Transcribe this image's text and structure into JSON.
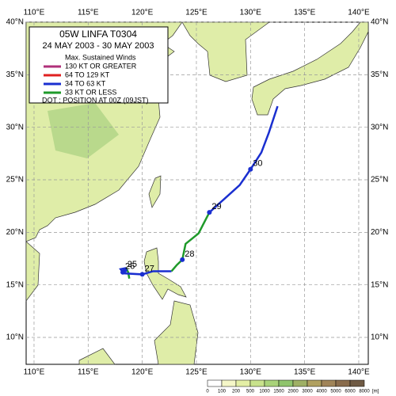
{
  "map": {
    "xlim": [
      109.27,
      140.88
    ],
    "ylim": [
      7.44,
      40
    ],
    "xticks": [
      {
        "value": 110,
        "label": "110°E"
      },
      {
        "value": 115,
        "label": "115°E"
      },
      {
        "value": 120,
        "label": "120°E"
      },
      {
        "value": 125,
        "label": "125°E"
      },
      {
        "value": 130,
        "label": "130°E"
      },
      {
        "value": 135,
        "label": "135°E"
      },
      {
        "value": 140,
        "label": "140°E"
      }
    ],
    "yticks": [
      {
        "value": 10,
        "label": "10°N"
      },
      {
        "value": 15,
        "label": "15°N"
      },
      {
        "value": 20,
        "label": "20°N"
      },
      {
        "value": 25,
        "label": "25°N"
      },
      {
        "value": 30,
        "label": "30°N"
      },
      {
        "value": 35,
        "label": "35°N"
      },
      {
        "value": 40,
        "label": "40°N"
      }
    ],
    "grid": true
  },
  "legend": {
    "title": "05W  LINFA  T0304",
    "period": "24 MAY 2003 - 30 MAY 2003",
    "heading": "Max. Sustained Winds",
    "items": [
      {
        "label": "130 KT OR GREATER",
        "color": "#b0307a"
      },
      {
        "label": "64 TO 129 KT",
        "color": "#e02020"
      },
      {
        "label": "34 TO 63 KT",
        "color": "#1a2fd0"
      },
      {
        "label": "33 KT OR LESS",
        "color": "#1f9a2a"
      }
    ],
    "note": "DOT : POSITION AT 00Z (09JST)"
  },
  "track": {
    "segments": [
      {
        "color": "#1f9a2a",
        "lon": [
          118.8,
          118.7,
          118.5
        ],
        "lat": [
          15.6,
          16.2,
          16.6
        ]
      },
      {
        "color": "#1a2fd0",
        "lon": [
          118.5,
          118.0,
          118.3,
          120.0,
          121.0,
          122.7
        ],
        "lat": [
          16.6,
          16.5,
          16.1,
          16.0,
          16.3,
          16.3
        ]
      },
      {
        "color": "#1f9a2a",
        "lon": [
          122.7,
          123.2,
          123.7,
          124.0,
          125.2,
          126.2
        ],
        "lat": [
          16.3,
          16.9,
          17.4,
          18.9,
          19.9,
          21.9
        ]
      },
      {
        "color": "#1a2fd0",
        "lon": [
          126.2,
          127.6,
          129.0,
          130.0,
          131.0,
          131.7,
          132.5
        ],
        "lat": [
          21.9,
          23.2,
          24.5,
          26.0,
          27.6,
          29.5,
          32.0
        ]
      }
    ],
    "positions": [
      {
        "label": "25",
        "lon": 118.4,
        "lat": 16.4
      },
      {
        "label": "26",
        "lon": 118.2,
        "lat": 16.2
      },
      {
        "label": "27",
        "lon": 120.0,
        "lat": 16.0
      },
      {
        "label": "28",
        "lon": 123.7,
        "lat": 17.4
      },
      {
        "label": "29",
        "lon": 126.2,
        "lat": 21.9
      },
      {
        "label": "30",
        "lon": 130.0,
        "lat": 26.0
      }
    ]
  },
  "colorbar": {
    "labels": [
      0,
      100,
      200,
      500,
      1000,
      1500,
      2000,
      3000,
      4000,
      5000,
      6000,
      8000
    ],
    "unit": "[m]",
    "colors": [
      "#ffffff",
      "#f5f7c8",
      "#e4efa5",
      "#c8e28c",
      "#a9d37a",
      "#8fc46c",
      "#9fb065",
      "#b0a060",
      "#a08458",
      "#8a6c4c",
      "#6f5a44"
    ]
  }
}
